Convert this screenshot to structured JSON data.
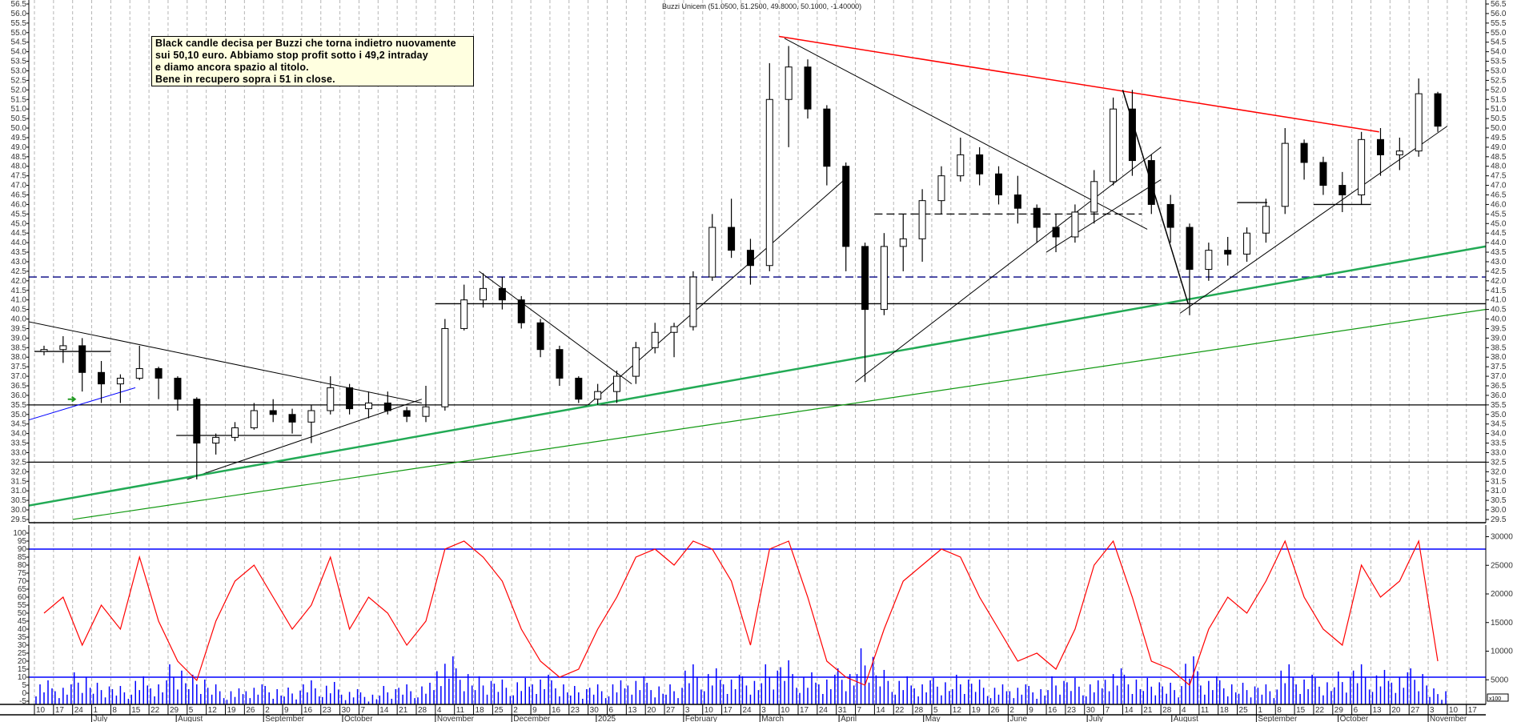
{
  "chart_data": {
    "type": "candlestick",
    "title": "Buzzi Unicem (51.0500, 51.2500, 49.8000, 50.1000, -1.40000)",
    "price_axis": {
      "min": 29.5,
      "max": 56.5,
      "step": 0.5
    },
    "indicator_axis": {
      "min": -5,
      "max": 100,
      "step": 5
    },
    "volume_axis": {
      "ticks": [
        5000,
        10000,
        15000,
        20000,
        25000,
        30000
      ],
      "unit_label": "x100"
    },
    "grid": "vertical dashed weekly",
    "colors": {
      "stochastic": "#ff0000",
      "volume": "#0000ff",
      "band": "#0000ff",
      "resistance": "#ff0000",
      "support_green": "#22aa55",
      "support_green_thin": "#119911",
      "trend": "#000000",
      "dashed_level": "#000080",
      "note_bg": "#ffffe0"
    },
    "candles_weekly": [
      [
        "2024-06-10",
        38.3,
        38.6,
        38.1,
        38.4
      ],
      [
        "2024-06-17",
        38.4,
        39.1,
        37.7,
        38.6
      ],
      [
        "2024-06-24",
        38.6,
        39.0,
        36.2,
        37.2
      ],
      [
        "2024-07-01",
        37.2,
        37.8,
        35.6,
        36.6
      ],
      [
        "2024-07-08",
        36.6,
        37.1,
        35.6,
        36.9
      ],
      [
        "2024-07-15",
        36.9,
        38.6,
        36.8,
        37.4
      ],
      [
        "2024-07-22",
        37.4,
        37.5,
        35.8,
        36.9
      ],
      [
        "2024-07-29",
        36.9,
        37.0,
        35.2,
        35.8
      ],
      [
        "2024-08-05",
        35.8,
        35.9,
        31.6,
        33.5
      ],
      [
        "2024-08-12",
        33.5,
        34.0,
        32.9,
        33.8
      ],
      [
        "2024-08-19",
        33.8,
        34.6,
        33.6,
        34.3
      ],
      [
        "2024-08-26",
        34.3,
        35.6,
        34.2,
        35.2
      ],
      [
        "2024-09-02",
        35.2,
        35.8,
        34.6,
        35.0
      ],
      [
        "2024-09-09",
        35.0,
        35.3,
        34.0,
        34.6
      ],
      [
        "2024-09-16",
        34.6,
        35.5,
        33.5,
        35.2
      ],
      [
        "2024-09-23",
        35.2,
        37.0,
        35.0,
        36.4
      ],
      [
        "2024-09-30",
        36.4,
        36.6,
        35.0,
        35.3
      ],
      [
        "2024-10-07",
        35.3,
        36.2,
        34.8,
        35.6
      ],
      [
        "2024-10-14",
        35.6,
        36.2,
        35.0,
        35.2
      ],
      [
        "2024-10-21",
        35.2,
        35.4,
        34.6,
        34.9
      ],
      [
        "2024-10-28",
        34.9,
        36.5,
        34.6,
        35.4
      ],
      [
        "2024-11-04",
        35.4,
        40.0,
        35.2,
        39.5
      ],
      [
        "2024-11-11",
        39.5,
        41.8,
        39.4,
        41.0
      ],
      [
        "2024-11-18",
        41.0,
        42.4,
        40.6,
        41.6
      ],
      [
        "2024-11-25",
        41.6,
        42.2,
        40.5,
        41.0
      ],
      [
        "2024-12-02",
        41.0,
        41.2,
        39.5,
        39.8
      ],
      [
        "2024-12-09",
        39.8,
        40.0,
        38.0,
        38.4
      ],
      [
        "2024-12-16",
        38.4,
        38.6,
        36.5,
        36.9
      ],
      [
        "2024-12-23",
        36.9,
        37.0,
        35.6,
        35.8
      ],
      [
        "2024-12-30",
        35.8,
        36.6,
        35.5,
        36.2
      ],
      [
        "2025-01-06",
        36.2,
        37.3,
        35.6,
        37.0
      ],
      [
        "2025-01-13",
        37.0,
        38.8,
        36.6,
        38.5
      ],
      [
        "2025-01-20",
        38.5,
        39.8,
        38.2,
        39.3
      ],
      [
        "2025-01-27",
        39.3,
        39.8,
        38.0,
        39.6
      ],
      [
        "2025-02-03",
        39.6,
        42.5,
        39.4,
        42.2
      ],
      [
        "2025-02-10",
        42.2,
        45.5,
        42.0,
        44.8
      ],
      [
        "2025-02-17",
        44.8,
        46.3,
        43.2,
        43.6
      ],
      [
        "2025-02-24",
        43.6,
        44.2,
        41.8,
        42.8
      ],
      [
        "2025-03-03",
        42.8,
        53.4,
        42.5,
        51.5
      ],
      [
        "2025-03-10",
        51.5,
        54.3,
        49.0,
        53.2
      ],
      [
        "2025-03-17",
        53.2,
        53.6,
        50.5,
        51.0
      ],
      [
        "2025-03-24",
        51.0,
        51.2,
        47.0,
        48.0
      ],
      [
        "2025-03-31",
        48.0,
        48.2,
        42.5,
        43.8
      ],
      [
        "2025-04-07",
        43.8,
        44.0,
        36.7,
        40.5
      ],
      [
        "2025-04-14",
        40.5,
        44.5,
        40.2,
        43.8
      ],
      [
        "2025-04-21",
        43.8,
        45.5,
        42.5,
        44.2
      ],
      [
        "2025-04-28",
        44.2,
        46.8,
        43.0,
        46.2
      ],
      [
        "2025-05-05",
        46.2,
        48.0,
        45.5,
        47.5
      ],
      [
        "2025-05-12",
        47.5,
        49.5,
        47.2,
        48.6
      ],
      [
        "2025-05-19",
        48.6,
        49.0,
        47.0,
        47.6
      ],
      [
        "2025-05-26",
        47.6,
        48.0,
        46.0,
        46.5
      ],
      [
        "2025-06-02",
        46.5,
        47.5,
        45.0,
        45.8
      ],
      [
        "2025-06-09",
        45.8,
        46.0,
        44.0,
        44.8
      ],
      [
        "2025-06-16",
        44.8,
        45.5,
        43.5,
        44.3
      ],
      [
        "2025-06-23",
        44.3,
        46.0,
        44.0,
        45.6
      ],
      [
        "2025-06-30",
        45.6,
        47.8,
        45.0,
        47.2
      ],
      [
        "2025-07-07",
        47.2,
        51.6,
        47.0,
        51.0
      ],
      [
        "2025-07-14",
        51.0,
        52.0,
        47.5,
        48.3
      ],
      [
        "2025-07-21",
        48.3,
        48.6,
        45.5,
        46.0
      ],
      [
        "2025-07-28",
        46.0,
        46.5,
        44.0,
        44.8
      ],
      [
        "2025-08-04",
        44.8,
        45.0,
        40.2,
        42.6
      ],
      [
        "2025-08-11",
        42.6,
        44.0,
        42.0,
        43.6
      ],
      [
        "2025-08-18",
        43.6,
        44.3,
        42.8,
        43.4
      ],
      [
        "2025-08-25",
        43.4,
        44.8,
        43.0,
        44.5
      ],
      [
        "2025-09-01",
        44.5,
        46.3,
        44.0,
        45.9
      ],
      [
        "2025-09-08",
        45.9,
        50.0,
        45.5,
        49.2
      ],
      [
        "2025-09-15",
        49.2,
        49.4,
        47.3,
        48.2
      ],
      [
        "2025-09-22",
        48.2,
        48.5,
        46.5,
        47.0
      ],
      [
        "2025-09-29",
        47.0,
        47.7,
        45.6,
        46.5
      ],
      [
        "2025-10-06",
        46.5,
        49.8,
        46.0,
        49.4
      ],
      [
        "2025-10-13",
        49.4,
        50.0,
        47.5,
        48.6
      ],
      [
        "2025-10-20",
        48.6,
        49.5,
        47.8,
        48.8
      ],
      [
        "2025-10-27",
        48.8,
        52.6,
        48.5,
        51.8
      ],
      [
        "2025-11-03",
        51.8,
        51.9,
        49.8,
        50.1
      ]
    ],
    "stochastic_weekly": [
      50,
      60,
      30,
      55,
      40,
      85,
      45,
      20,
      8,
      45,
      70,
      80,
      60,
      40,
      55,
      85,
      40,
      60,
      50,
      30,
      45,
      90,
      95,
      85,
      70,
      40,
      20,
      10,
      15,
      40,
      60,
      85,
      90,
      80,
      95,
      90,
      70,
      30,
      90,
      95,
      60,
      20,
      10,
      5,
      40,
      70,
      80,
      90,
      85,
      60,
      40,
      20,
      25,
      15,
      40,
      80,
      95,
      60,
      20,
      15,
      5,
      40,
      60,
      50,
      70,
      95,
      60,
      40,
      30,
      80,
      60,
      70,
      95,
      20
    ],
    "volume_weekly": [
      3500,
      3000,
      4500,
      3200,
      2800,
      4000,
      3500,
      5500,
      4200,
      3000,
      2500,
      3000,
      2800,
      2600,
      3500,
      3300,
      2400,
      2000,
      2800,
      3000,
      3200,
      6500,
      5000,
      4000,
      3600,
      3800,
      4200,
      3500,
      2800,
      3000,
      3500,
      4000,
      3200,
      3000,
      5500,
      5000,
      4200,
      4000,
      5500,
      6000,
      4500,
      4200,
      5000,
      7500,
      4800,
      4000,
      3500,
      3800,
      4200,
      3600,
      3000,
      3000,
      2800,
      4000,
      3800,
      3500,
      5000,
      4200,
      3800,
      3200,
      6500,
      4000,
      3500,
      3200,
      3000,
      5500,
      4200,
      3800,
      4600,
      5500,
      4800,
      4500,
      5000,
      2500
    ],
    "levels": [
      {
        "price": 42.2,
        "style": "dashed",
        "color": "#000080"
      },
      {
        "price": 40.8,
        "from": "2024-11-04",
        "style": "solid",
        "color": "#000000"
      },
      {
        "price": 35.5,
        "style": "solid",
        "color": "#000000"
      },
      {
        "price": 32.5,
        "style": "solid",
        "color": "#000000"
      },
      {
        "price": 38.3,
        "from": "2024-06-10",
        "to": "2024-07-08",
        "style": "solid",
        "color": "#000000"
      },
      {
        "price": 33.9,
        "from": "2024-08-01",
        "to": "2024-09-16",
        "style": "solid",
        "color": "#000000"
      },
      {
        "price": 45.5,
        "from": "2025-04-14",
        "to": "2025-07-21",
        "style": "dashed",
        "color": "#000000"
      },
      {
        "price": 46.1,
        "from": "2025-08-25",
        "to": "2025-09-05",
        "style": "solid",
        "color": "#000000"
      },
      {
        "price": 46.0,
        "from": "2025-09-22",
        "to": "2025-10-13",
        "style": "solid",
        "color": "#000000"
      }
    ],
    "trendlines": [
      {
        "from": [
          "2024-06-03",
          40.0
        ],
        "to": [
          "2024-10-30",
          35.6
        ],
        "color": "#000000",
        "width": 1
      },
      {
        "from": [
          "2024-08-05",
          31.6
        ],
        "to": [
          "2024-10-30",
          35.8
        ],
        "color": "#000000",
        "width": 1
      },
      {
        "from": [
          "2024-06-03",
          34.5
        ],
        "to": [
          "2024-07-17",
          36.4
        ],
        "color": "#0000ff",
        "width": 1
      },
      {
        "from": [
          "2024-06-03",
          30.1
        ],
        "to": [
          "2025-11-24",
          43.8
        ],
        "color": "#22aa55",
        "width": 2.5
      },
      {
        "from": [
          "2024-06-24",
          29.5
        ],
        "to": [
          "2025-11-24",
          40.5
        ],
        "color": "#119911",
        "width": 1.2
      },
      {
        "from": [
          "2024-11-20",
          42.5
        ],
        "to": [
          "2025-01-15",
          36.6
        ],
        "color": "#000000",
        "width": 1
      },
      {
        "from": [
          "2024-12-30",
          35.5
        ],
        "to": [
          "2025-04-03",
          47.3
        ],
        "color": "#000000",
        "width": 1
      },
      {
        "from": [
          "2025-04-07",
          36.7
        ],
        "to": [
          "2025-07-28",
          49.0
        ],
        "color": "#000000",
        "width": 1
      },
      {
        "from": [
          "2025-06-16",
          43.5
        ],
        "to": [
          "2025-07-28",
          47.3
        ],
        "color": "#000000",
        "width": 1
      },
      {
        "from": [
          "2025-03-12",
          54.7
        ],
        "to": [
          "2025-07-23",
          44.7
        ],
        "color": "#000000",
        "width": 1
      },
      {
        "from": [
          "2025-03-10",
          54.8
        ],
        "to": [
          "2025-10-16",
          49.8
        ],
        "color": "#ff0000",
        "width": 1.5
      },
      {
        "from": [
          "2025-07-14",
          52.0
        ],
        "to": [
          "2025-08-07",
          40.8
        ],
        "color": "#000000",
        "width": 1.5
      },
      {
        "from": [
          "2025-08-04",
          40.3
        ],
        "to": [
          "2025-11-10",
          50.1
        ],
        "color": "#000000",
        "width": 1
      }
    ],
    "indicator_levels": [
      90,
      10
    ],
    "arrow_marker": {
      "date": "2024-06-24",
      "price": 35.8,
      "color": "#229922"
    },
    "time_axis": {
      "week_labels": [
        "10",
        "17",
        "24",
        "1",
        "8",
        "15",
        "22",
        "29",
        "5",
        "12",
        "19",
        "26",
        "2",
        "9",
        "16",
        "23",
        "30",
        "7",
        "14",
        "21",
        "28",
        "4",
        "11",
        "18",
        "25",
        "2",
        "9",
        "16",
        "23",
        "30",
        "6",
        "13",
        "20",
        "27",
        "3",
        "10",
        "17",
        "24",
        "3",
        "10",
        "17",
        "24",
        "31",
        "7",
        "14",
        "22",
        "28",
        "5",
        "12",
        "19",
        "26",
        "2",
        "9",
        "16",
        "23",
        "30",
        "7",
        "14",
        "21",
        "28",
        "4",
        "11",
        "18",
        "25",
        "1",
        "8",
        "15",
        "22",
        "29",
        "6",
        "13",
        "20",
        "27",
        "3",
        "10",
        "17"
      ],
      "months": [
        {
          "label": "July",
          "date": "2024-07-01"
        },
        {
          "label": "August",
          "date": "2024-08-01"
        },
        {
          "label": "September",
          "date": "2024-09-02"
        },
        {
          "label": "October",
          "date": "2024-10-01"
        },
        {
          "label": "November",
          "date": "2024-11-04"
        },
        {
          "label": "December",
          "date": "2024-12-02"
        },
        {
          "label": "2025",
          "date": "2025-01-02"
        },
        {
          "label": "February",
          "date": "2025-02-03"
        },
        {
          "label": "March",
          "date": "2025-03-03"
        },
        {
          "label": "April",
          "date": "2025-04-01"
        },
        {
          "label": "May",
          "date": "2025-05-02"
        },
        {
          "label": "June",
          "date": "2025-06-02"
        },
        {
          "label": "July",
          "date": "2025-07-01"
        },
        {
          "label": "August",
          "date": "2025-08-01"
        },
        {
          "label": "September",
          "date": "2025-09-01"
        },
        {
          "label": "October",
          "date": "2025-10-01"
        },
        {
          "label": "November",
          "date": "2025-11-03"
        }
      ]
    }
  },
  "note": {
    "lines": [
      "Black candle decisa per Buzzi che torna indietro nuovamente",
      "sui 50,10 euro. Abbiamo stop profit sotto i 49,2 intraday",
      "e diamo ancora spazio al titolo.",
      "Bene in recupero sopra i 51 in close."
    ]
  }
}
